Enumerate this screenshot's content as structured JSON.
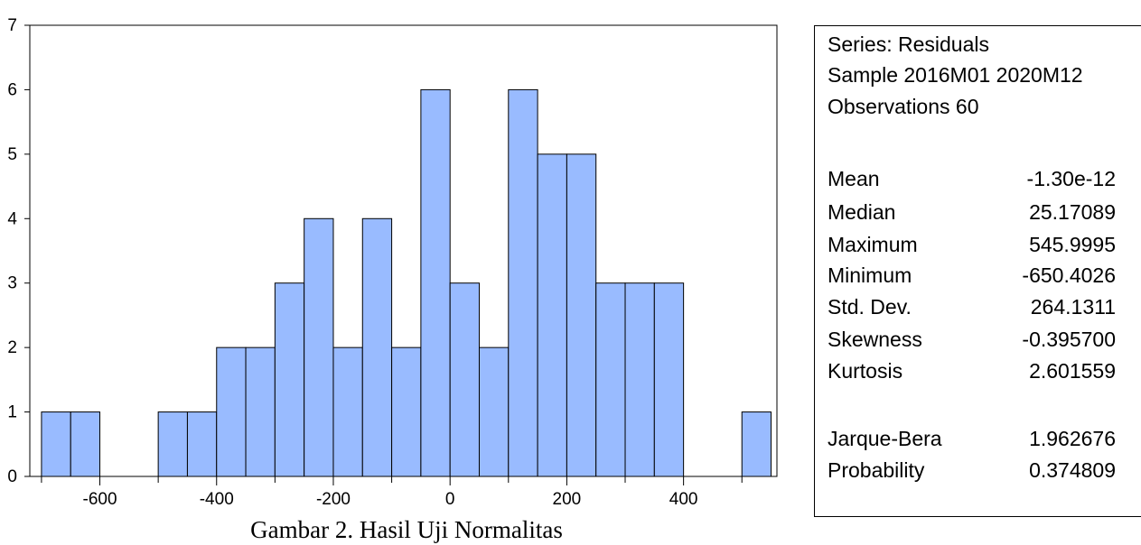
{
  "colors": {
    "bar_fill": "#99BBFF",
    "bar_stroke": "#000000",
    "axis": "#000000",
    "background": "#ffffff"
  },
  "chart_data": {
    "type": "bar",
    "bin_width": 50,
    "bins": [
      {
        "from": -700,
        "to": -650,
        "count": 1
      },
      {
        "from": -650,
        "to": -600,
        "count": 1
      },
      {
        "from": -600,
        "to": -550,
        "count": 0
      },
      {
        "from": -550,
        "to": -500,
        "count": 0
      },
      {
        "from": -500,
        "to": -450,
        "count": 1
      },
      {
        "from": -450,
        "to": -400,
        "count": 1
      },
      {
        "from": -400,
        "to": -350,
        "count": 2
      },
      {
        "from": -350,
        "to": -300,
        "count": 2
      },
      {
        "from": -300,
        "to": -250,
        "count": 3
      },
      {
        "from": -250,
        "to": -200,
        "count": 4
      },
      {
        "from": -200,
        "to": -150,
        "count": 2
      },
      {
        "from": -150,
        "to": -100,
        "count": 4
      },
      {
        "from": -100,
        "to": -50,
        "count": 2
      },
      {
        "from": -50,
        "to": 0,
        "count": 6
      },
      {
        "from": 0,
        "to": 50,
        "count": 3
      },
      {
        "from": 50,
        "to": 100,
        "count": 2
      },
      {
        "from": 100,
        "to": 150,
        "count": 6
      },
      {
        "from": 150,
        "to": 200,
        "count": 5
      },
      {
        "from": 200,
        "to": 250,
        "count": 5
      },
      {
        "from": 250,
        "to": 300,
        "count": 3
      },
      {
        "from": 300,
        "to": 350,
        "count": 3
      },
      {
        "from": 350,
        "to": 400,
        "count": 3
      },
      {
        "from": 400,
        "to": 450,
        "count": 0
      },
      {
        "from": 450,
        "to": 500,
        "count": 0
      },
      {
        "from": 500,
        "to": 550,
        "count": 1
      }
    ],
    "xlim": [
      -720,
      560
    ],
    "ylim": [
      0,
      7
    ],
    "x_ticks": [
      -600,
      -400,
      -200,
      0,
      200,
      400
    ],
    "x_minor_step": 100,
    "y_ticks": [
      0,
      1,
      2,
      3,
      4,
      5,
      6,
      7
    ],
    "grid": false,
    "legend": "none"
  },
  "stats": {
    "header": [
      "Series: Residuals",
      "Sample 2016M01 2020M12",
      "Observations 60"
    ],
    "rows": [
      {
        "label": "Mean",
        "value": "-1.30e-12"
      },
      {
        "label": "Median",
        "value": "25.17089"
      },
      {
        "label": "Maximum",
        "value": "545.9995"
      },
      {
        "label": "Minimum",
        "value": "-650.4026"
      },
      {
        "label": "Std. Dev.",
        "value": "264.1311"
      },
      {
        "label": "Skewness",
        "value": "-0.395700"
      },
      {
        "label": "Kurtosis",
        "value": "2.601559"
      }
    ],
    "tests": [
      {
        "label": "Jarque-Bera",
        "value": "1.962676"
      },
      {
        "label": "Probability",
        "value": "0.374809"
      }
    ]
  },
  "caption": "Gambar 2. Hasil Uji Normalitas"
}
